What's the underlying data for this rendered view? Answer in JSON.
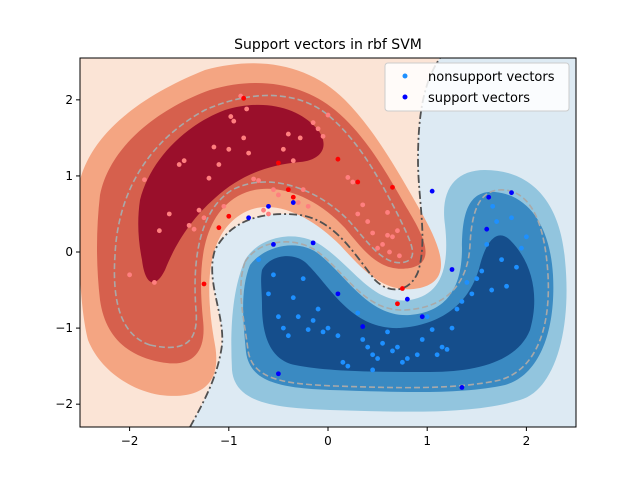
{
  "chart_data": {
    "type": "scatter",
    "title": "Support vectors in rbf SVM",
    "xlabel": "",
    "ylabel": "",
    "xlim": [
      -2.5,
      2.5
    ],
    "ylim": [
      -2.3,
      2.55
    ],
    "x_ticks": [
      "−2",
      "−1",
      "0",
      "1",
      "2"
    ],
    "y_ticks": [
      "−2",
      "−1",
      "0",
      "1",
      "2"
    ],
    "x_tick_values": [
      -2,
      -1,
      0,
      1,
      2
    ],
    "y_tick_values": [
      -2,
      -1,
      0,
      1,
      2
    ],
    "grid": false,
    "legend_position": "top-right",
    "background": "filled decision-function contours (red = class A, blue = class B) with dashed margin lines and a dash-dot decision boundary",
    "colors": {
      "red_level_0": "#fbe4d6",
      "red_level_1": "#f4a582",
      "red_level_2": "#d6604d",
      "red_level_3": "#9a0f2b",
      "blue_level_0": "#ddeaf3",
      "blue_level_1": "#92c5de",
      "blue_level_2": "#3a8ac2",
      "blue_level_3": "#154e8c",
      "margin_line": "#a9a9a9",
      "boundary_line": "#505050",
      "nonsupport_red": "#ff7f7f",
      "support_red": "#ff0000",
      "nonsupport_blue": "#1e90ff",
      "support_blue": "#0000ff"
    },
    "series": [
      {
        "name": "nonsupport vectors",
        "legend_color": "#1e90ff",
        "points_red": [
          [
            -1.85,
            0.95
          ],
          [
            -1.7,
            0.28
          ],
          [
            -1.6,
            0.5
          ],
          [
            -1.5,
            1.15
          ],
          [
            -1.45,
            1.2
          ],
          [
            -1.4,
            0.35
          ],
          [
            -1.35,
            0.3
          ],
          [
            -1.3,
            0.55
          ],
          [
            -1.25,
            0.45
          ],
          [
            -1.2,
            0.97
          ],
          [
            -1.15,
            1.38
          ],
          [
            -1.1,
            1.15
          ],
          [
            -1.05,
            0.6
          ],
          [
            -1.0,
            1.35
          ],
          [
            -0.98,
            1.78
          ],
          [
            -0.95,
            1.72
          ],
          [
            -0.88,
            2.05
          ],
          [
            -0.85,
            1.5
          ],
          [
            -0.82,
            1.88
          ],
          [
            -0.8,
            1.3
          ],
          [
            -0.75,
            0.96
          ],
          [
            -0.7,
            0.94
          ],
          [
            -0.65,
            0.55
          ],
          [
            -0.6,
            0.5
          ],
          [
            -0.55,
            0.82
          ],
          [
            -0.5,
            0.75
          ],
          [
            -0.45,
            1.35
          ],
          [
            -0.4,
            1.55
          ],
          [
            -0.35,
            1.2
          ],
          [
            -0.3,
            0.65
          ],
          [
            -0.28,
            1.5
          ],
          [
            -0.25,
            0.82
          ],
          [
            -0.2,
            0.6
          ],
          [
            -0.15,
            1.7
          ],
          [
            -0.1,
            1.62
          ],
          [
            -0.05,
            1.52
          ],
          [
            0.0,
            1.8
          ],
          [
            0.2,
            0.98
          ],
          [
            0.25,
            0.92
          ],
          [
            0.3,
            0.5
          ],
          [
            0.35,
            0.62
          ],
          [
            0.4,
            0.4
          ],
          [
            0.45,
            0.25
          ],
          [
            0.5,
            0.05
          ],
          [
            0.55,
            0.1
          ],
          [
            0.6,
            0.22
          ],
          [
            0.65,
            0.2
          ],
          [
            0.62,
            0.0
          ],
          [
            0.7,
            0.28
          ],
          [
            0.72,
            -0.05
          ],
          [
            0.6,
            0.52
          ],
          [
            -2.0,
            -0.3
          ],
          [
            -1.75,
            -0.4
          ]
        ],
        "points_blue": [
          [
            -0.7,
            -0.1
          ],
          [
            -0.6,
            -0.55
          ],
          [
            -0.55,
            -0.3
          ],
          [
            -0.5,
            -0.85
          ],
          [
            -0.45,
            -1.0
          ],
          [
            -0.4,
            -1.1
          ],
          [
            -0.35,
            -0.6
          ],
          [
            -0.3,
            -0.85
          ],
          [
            -0.25,
            -0.35
          ],
          [
            -0.2,
            -1.02
          ],
          [
            -0.15,
            -0.9
          ],
          [
            -0.1,
            -0.75
          ],
          [
            -0.05,
            -1.05
          ],
          [
            0.0,
            -1.0
          ],
          [
            0.1,
            -1.1
          ],
          [
            0.15,
            -1.45
          ],
          [
            0.2,
            -1.5
          ],
          [
            0.3,
            -0.8
          ],
          [
            0.35,
            -1.15
          ],
          [
            0.4,
            -1.25
          ],
          [
            0.45,
            -1.35
          ],
          [
            0.5,
            -1.4
          ],
          [
            0.55,
            -1.2
          ],
          [
            0.6,
            -1.05
          ],
          [
            0.65,
            -1.3
          ],
          [
            0.7,
            -1.25
          ],
          [
            0.75,
            -1.45
          ],
          [
            0.8,
            -1.4
          ],
          [
            0.9,
            -1.35
          ],
          [
            0.95,
            -1.15
          ],
          [
            1.0,
            -0.85
          ],
          [
            1.05,
            -1.02
          ],
          [
            1.1,
            -1.35
          ],
          [
            1.15,
            -1.25
          ],
          [
            1.2,
            -1.28
          ],
          [
            1.25,
            -1.0
          ],
          [
            1.3,
            -0.75
          ],
          [
            1.35,
            -0.65
          ],
          [
            1.4,
            -0.4
          ],
          [
            1.45,
            -0.55
          ],
          [
            1.5,
            -0.35
          ],
          [
            1.55,
            -0.25
          ],
          [
            1.6,
            0.1
          ],
          [
            1.65,
            -0.5
          ],
          [
            1.7,
            0.4
          ],
          [
            1.75,
            -0.1
          ],
          [
            1.8,
            -0.45
          ],
          [
            1.85,
            0.45
          ],
          [
            1.9,
            -0.2
          ],
          [
            1.95,
            0.05
          ],
          [
            2.0,
            0.2
          ],
          [
            1.66,
            0.6
          ],
          [
            0.45,
            -1.55
          ]
        ]
      },
      {
        "name": "support vectors",
        "legend_color": "#0000ff",
        "points_red": [
          [
            -1.25,
            -0.42
          ],
          [
            -1.1,
            0.32
          ],
          [
            -1.0,
            0.47
          ],
          [
            -0.85,
            2.02
          ],
          [
            -0.5,
            1.17
          ],
          [
            -0.4,
            0.82
          ],
          [
            -0.35,
            0.72
          ],
          [
            0.1,
            1.22
          ],
          [
            0.3,
            0.92
          ],
          [
            0.65,
            0.85
          ],
          [
            0.7,
            -0.68
          ],
          [
            0.75,
            -0.48
          ]
        ],
        "points_blue": [
          [
            -0.8,
            0.45
          ],
          [
            -0.6,
            0.6
          ],
          [
            -0.55,
            0.1
          ],
          [
            -0.35,
            0.65
          ],
          [
            -0.15,
            0.12
          ],
          [
            0.1,
            -0.55
          ],
          [
            0.35,
            -0.98
          ],
          [
            0.8,
            -0.62
          ],
          [
            0.95,
            -0.85
          ],
          [
            1.05,
            0.8
          ],
          [
            1.25,
            -0.23
          ],
          [
            1.35,
            -1.78
          ],
          [
            1.6,
            0.3
          ],
          [
            1.62,
            0.72
          ],
          [
            1.85,
            0.78
          ],
          [
            -0.5,
            -1.6
          ]
        ]
      }
    ]
  }
}
